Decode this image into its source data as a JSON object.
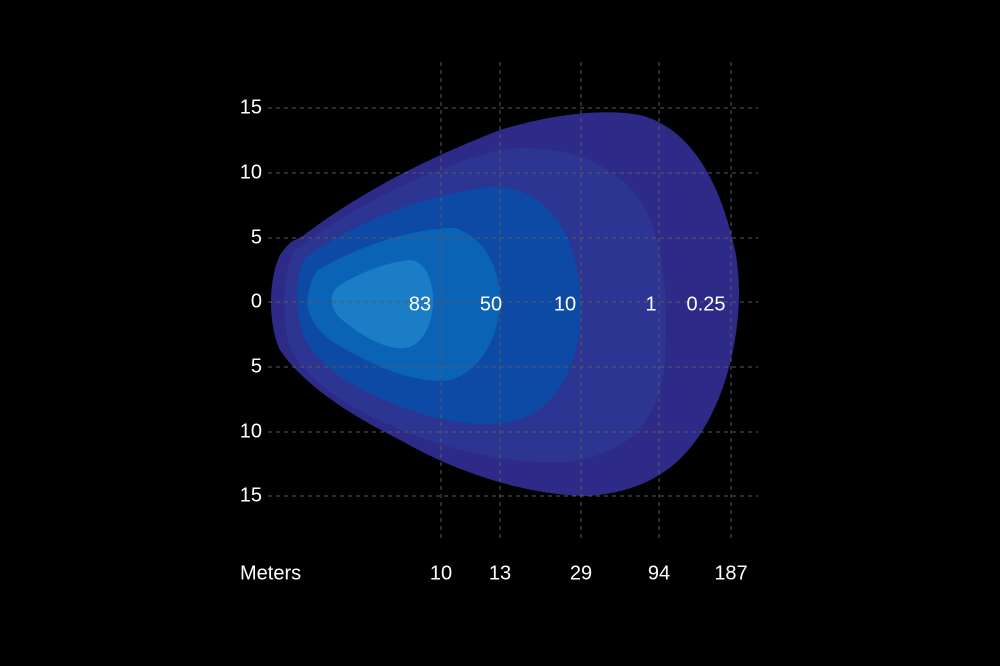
{
  "chart_data": {
    "type": "area",
    "title": "",
    "xlabel": "Meters",
    "ylabel": "",
    "grid": true,
    "y_ticks": [
      "15",
      "10",
      "5",
      "0",
      "5",
      "10",
      "15"
    ],
    "x_ticks": [
      "10",
      "13",
      "29",
      "94",
      "187"
    ],
    "zones": [
      {
        "label": "0.25",
        "color": "#2e2a88"
      },
      {
        "label": "1",
        "color": "#2c3592"
      },
      {
        "label": "10",
        "color": "#0c4aa5"
      },
      {
        "label": "50",
        "color": "#0b63b6"
      },
      {
        "label": "83",
        "color": "#1b7dc6"
      }
    ]
  }
}
